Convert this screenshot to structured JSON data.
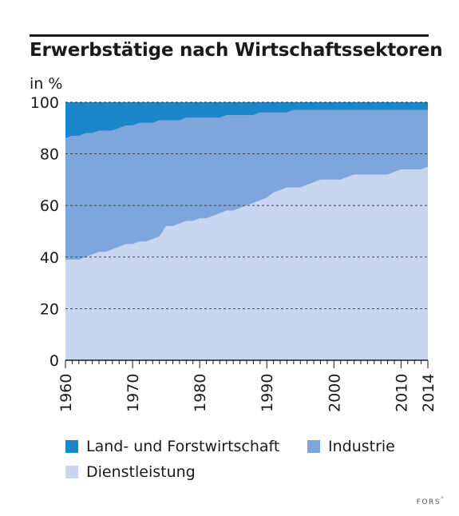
{
  "header": {
    "title": "Erwerbstätige nach Wirtschaftssektoren",
    "unit_label": "in %"
  },
  "chart_data": {
    "type": "area",
    "stacked": true,
    "title": "Erwerbstätige nach Wirtschaftssektoren",
    "ylabel": "in %",
    "xlabel": "",
    "xlim": [
      1960,
      2014
    ],
    "ylim": [
      0,
      100
    ],
    "x_ticks": [
      1960,
      1970,
      1980,
      1990,
      2000,
      2010,
      2014
    ],
    "y_ticks": [
      0,
      20,
      40,
      60,
      80,
      100
    ],
    "grid": "horizontal-dashed",
    "legend_position": "bottom",
    "x": [
      1960,
      1961,
      1962,
      1963,
      1964,
      1965,
      1966,
      1967,
      1968,
      1969,
      1970,
      1971,
      1972,
      1973,
      1974,
      1975,
      1976,
      1977,
      1978,
      1979,
      1980,
      1981,
      1982,
      1983,
      1984,
      1985,
      1986,
      1987,
      1988,
      1989,
      1990,
      1991,
      1992,
      1993,
      1994,
      1995,
      1996,
      1997,
      1998,
      1999,
      2000,
      2001,
      2002,
      2003,
      2004,
      2005,
      2006,
      2007,
      2008,
      2009,
      2010,
      2011,
      2012,
      2013,
      2014
    ],
    "series": [
      {
        "name": "Dienstleistung",
        "color": "#c9d6ef",
        "values": [
          39,
          39,
          39,
          40,
          41,
          42,
          42,
          43,
          44,
          45,
          45,
          46,
          46,
          47,
          48,
          52,
          52,
          53,
          54,
          54,
          55,
          55,
          56,
          57,
          58,
          58,
          59,
          60,
          61,
          62,
          63,
          65,
          66,
          67,
          67,
          67,
          68,
          69,
          70,
          70,
          70,
          70,
          71,
          72,
          72,
          72,
          72,
          72,
          72,
          73,
          74,
          74,
          74,
          74,
          75
        ]
      },
      {
        "name": "Industrie",
        "color": "#7fa6dc",
        "values": [
          47,
          48,
          48,
          48,
          47,
          47,
          47,
          46,
          46,
          46,
          46,
          46,
          46,
          45,
          45,
          41,
          41,
          40,
          40,
          40,
          39,
          39,
          38,
          37,
          37,
          37,
          36,
          35,
          34,
          34,
          33,
          31,
          30,
          29,
          30,
          30,
          29,
          28,
          27,
          27,
          27,
          27,
          26,
          25,
          25,
          25,
          25,
          25,
          25,
          24,
          23,
          23,
          23,
          23,
          22
        ]
      },
      {
        "name": "Land- und Forstwirtschaft",
        "color": "#1b86c9",
        "values": [
          14,
          13,
          13,
          12,
          12,
          11,
          11,
          11,
          10,
          9,
          9,
          8,
          8,
          8,
          7,
          7,
          7,
          7,
          6,
          6,
          6,
          6,
          6,
          6,
          5,
          5,
          5,
          5,
          5,
          4,
          4,
          4,
          4,
          4,
          3,
          3,
          3,
          3,
          3,
          3,
          3,
          3,
          3,
          3,
          3,
          3,
          3,
          3,
          3,
          3,
          3,
          3,
          3,
          3,
          3
        ]
      }
    ]
  },
  "legend": [
    {
      "label": "Land- und Forstwirtschaft",
      "color": "#1b86c9"
    },
    {
      "label": "Industrie",
      "color": "#7fa6dc"
    },
    {
      "label": "Dienstleistung",
      "color": "#c9d6ef"
    }
  ],
  "brand": {
    "text": "FORS",
    "mark": "°"
  }
}
